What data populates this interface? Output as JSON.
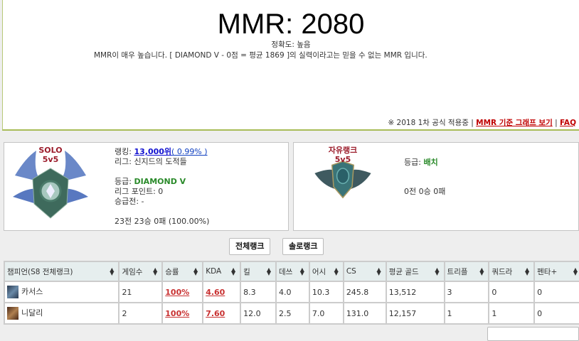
{
  "header": {
    "mmr": "MMR: 2080",
    "accuracy": "정확도: 높음",
    "message": "MMR이 매우 높습니다. [ DIAMOND V - 0점 = 평균 1869 ]의 실력이라고는 믿을 수 없는 MMR 입니다.",
    "notice": "※ 2018 1차 공식 적용중",
    "sep": "|",
    "graph_link": "MMR 기준 그래프 보기",
    "faq_link": "FAQ"
  },
  "solo": {
    "title1": "SOLO",
    "title2": "5v5",
    "ranking_label": "랭킹: ",
    "ranking": "13,000위",
    "ranking_pct": "( 0.99% )",
    "league": "리그: 신지드의 도적들",
    "tier_label": "등급: ",
    "tier": "DIAMOND V",
    "lp": "리그 포인트: 0",
    "promo": "승급전: -",
    "record": "23전 23승 0패 (100.00%)"
  },
  "flex": {
    "title1": "자유랭크",
    "title2": "5v5",
    "tier_label": "등급: ",
    "tier": "배치",
    "record": "0전 0승 0패"
  },
  "buttons": {
    "all": "전체랭크",
    "solo": "솔로랭크"
  },
  "table": {
    "headers": [
      "챔피언(S8 전체랭크)",
      "게임수",
      "승률",
      "KDA",
      "킬",
      "데쓰",
      "어시",
      "CS",
      "평균 골드",
      "트리플",
      "쿼드라",
      "펜타+"
    ],
    "rows": [
      [
        "카서스",
        "21",
        "100%",
        "4.60",
        "8.3",
        "4.0",
        "10.3",
        "245.8",
        "13,512",
        "3",
        "0",
        "0"
      ],
      [
        "니달리",
        "2",
        "100%",
        "7.60",
        "12.0",
        "2.5",
        "7.0",
        "131.0",
        "12,157",
        "1",
        "1",
        "0"
      ]
    ]
  },
  "colors": {
    "accent_green": "#a8bc58",
    "link_red": "#c00000",
    "tier_green": "#2a8a2a",
    "emblem_title": "#9b1b2a"
  }
}
